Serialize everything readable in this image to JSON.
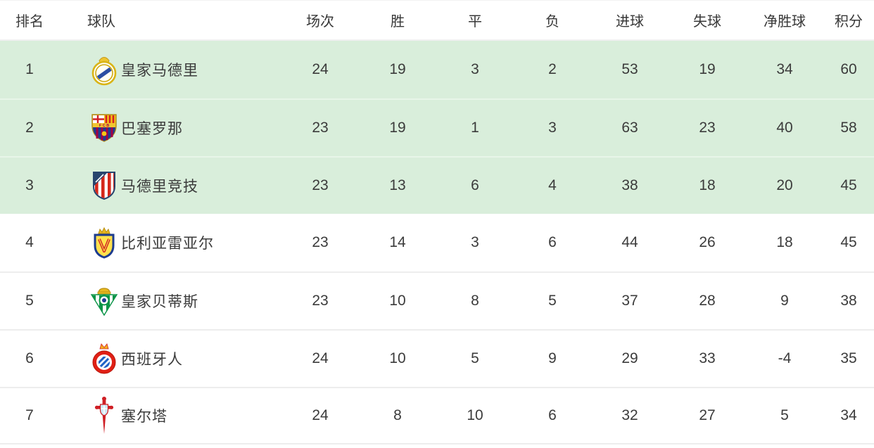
{
  "table": {
    "headers": [
      {
        "key": "rank",
        "label": "排名"
      },
      {
        "key": "team",
        "label": "球队"
      },
      {
        "key": "played",
        "label": "场次"
      },
      {
        "key": "wins",
        "label": "胜"
      },
      {
        "key": "draws",
        "label": "平"
      },
      {
        "key": "losses",
        "label": "负"
      },
      {
        "key": "goals_for",
        "label": "进球"
      },
      {
        "key": "goals_against",
        "label": "失球"
      },
      {
        "key": "goal_diff",
        "label": "净胜球"
      },
      {
        "key": "points",
        "label": "积分"
      }
    ],
    "rows": [
      {
        "rank": "1",
        "team": "皇家马德里",
        "badge": "real-madrid-badge",
        "highlighted": true,
        "played": "24",
        "wins": "19",
        "draws": "3",
        "losses": "2",
        "goals_for": "53",
        "goals_against": "19",
        "goal_diff": "34",
        "points": "60"
      },
      {
        "rank": "2",
        "team": "巴塞罗那",
        "badge": "barcelona-badge",
        "highlighted": true,
        "played": "23",
        "wins": "19",
        "draws": "1",
        "losses": "3",
        "goals_for": "63",
        "goals_against": "23",
        "goal_diff": "40",
        "points": "58"
      },
      {
        "rank": "3",
        "team": "马德里竞技",
        "badge": "atletico-madrid-badge",
        "highlighted": true,
        "played": "23",
        "wins": "13",
        "draws": "6",
        "losses": "4",
        "goals_for": "38",
        "goals_against": "18",
        "goal_diff": "20",
        "points": "45"
      },
      {
        "rank": "4",
        "team": "比利亚雷亚尔",
        "badge": "villarreal-badge",
        "highlighted": false,
        "played": "23",
        "wins": "14",
        "draws": "3",
        "losses": "6",
        "goals_for": "44",
        "goals_against": "26",
        "goal_diff": "18",
        "points": "45"
      },
      {
        "rank": "5",
        "team": "皇家贝蒂斯",
        "badge": "real-betis-badge",
        "highlighted": false,
        "played": "23",
        "wins": "10",
        "draws": "8",
        "losses": "5",
        "goals_for": "37",
        "goals_against": "28",
        "goal_diff": "9",
        "points": "38"
      },
      {
        "rank": "6",
        "team": "西班牙人",
        "badge": "espanyol-badge",
        "highlighted": false,
        "played": "24",
        "wins": "10",
        "draws": "5",
        "losses": "9",
        "goals_for": "29",
        "goals_against": "33",
        "goal_diff": "-4",
        "points": "35"
      },
      {
        "rank": "7",
        "team": "塞尔塔",
        "badge": "celta-vigo-badge",
        "highlighted": false,
        "played": "24",
        "wins": "8",
        "draws": "10",
        "losses": "6",
        "goals_for": "32",
        "goals_against": "27",
        "goal_diff": "5",
        "points": "34"
      }
    ]
  },
  "colors": {
    "highlight_row_bg": "#d9eedb",
    "highlight_divider": "#e8f5e9",
    "plain_divider": "#ededed",
    "header_divider": "#f0f0f0",
    "text": "#3b3b3b"
  }
}
